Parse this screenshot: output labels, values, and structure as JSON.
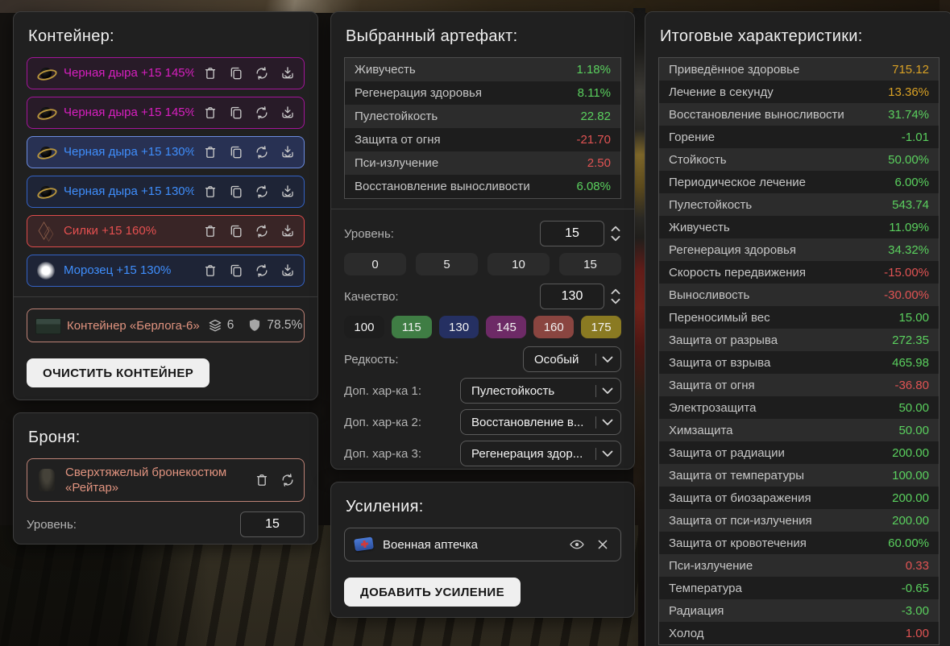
{
  "palette": {
    "positive_value": "#5ad05e",
    "negative_value": "#e05353",
    "derived_value": "#d9a125",
    "rarity_magenta": "#d81fc0",
    "rarity_blue": "#3f8efc",
    "rarity_red": "#e55050",
    "container_salmon": "#e0937f",
    "selected_item_border": "#6c8ce0"
  },
  "container_panel": {
    "title": "Контейнер:",
    "items": [
      {
        "name": "Черная дыра +15 145%",
        "color": "magenta",
        "icon": "black-hole-icon",
        "selected": false
      },
      {
        "name": "Черная дыра +15 145%",
        "color": "magenta",
        "icon": "black-hole-icon",
        "selected": false
      },
      {
        "name": "Черная дыра +15 130%",
        "color": "blue",
        "icon": "black-hole-icon",
        "selected": true
      },
      {
        "name": "Черная дыра +15 130%",
        "color": "blue",
        "icon": "black-hole-icon",
        "selected": false
      },
      {
        "name": "Силки +15 160%",
        "color": "red",
        "icon": "snare-icon",
        "selected": false
      },
      {
        "name": "Морозец +15 130%",
        "color": "blue",
        "icon": "frost-orb-icon",
        "selected": false
      }
    ],
    "info": {
      "name": "Контейнер «Берлога-6»",
      "capacity": "6",
      "protection": "78.5%"
    },
    "clear_button_label": "ОЧИСТИТЬ КОНТЕЙНЕР"
  },
  "armor_panel": {
    "title": "Броня:",
    "item_name": "Сверхтяжелый бронекостюм «Рейтар»",
    "level_label": "Уровень:",
    "level_value": "15"
  },
  "artifact_panel": {
    "title": "Выбранный артефакт:",
    "stats": [
      {
        "label": "Живучесть",
        "value": "1.18%",
        "color": "green"
      },
      {
        "label": "Регенерация здоровья",
        "value": "8.11%",
        "color": "green"
      },
      {
        "label": "Пулестойкость",
        "value": "22.82",
        "color": "green"
      },
      {
        "label": "Защита от огня",
        "value": "-21.70",
        "color": "red"
      },
      {
        "label": "Пси-излучение",
        "value": "2.50",
        "color": "red"
      },
      {
        "label": "Восстановление выносливости",
        "value": "6.08%",
        "color": "green"
      }
    ],
    "level_label": "Уровень:",
    "level_value": "15",
    "level_options": [
      "0",
      "5",
      "10",
      "15"
    ],
    "quality_label": "Качество:",
    "quality_value": "130",
    "quality_options": [
      {
        "label": "100",
        "bg": "#1d1d1d"
      },
      {
        "label": "115",
        "bg": "#3f7d44"
      },
      {
        "label": "130",
        "bg": "#253062"
      },
      {
        "label": "145",
        "bg": "#6d2a66"
      },
      {
        "label": "160",
        "bg": "#8a4540"
      },
      {
        "label": "175",
        "bg": "#8a7a22"
      }
    ],
    "rarity_label": "Редкость:",
    "rarity_value": "Особый",
    "extra_stats": [
      {
        "label": "Доп. хар-ка 1:",
        "value": "Пулестойкость"
      },
      {
        "label": "Доп. хар-ка 2:",
        "value": "Восстановление в..."
      },
      {
        "label": "Доп. хар-ка 3:",
        "value": "Регенерация здор..."
      }
    ]
  },
  "boosts_panel": {
    "title": "Усиления:",
    "items": [
      {
        "name": "Военная аптечка",
        "icon": "medkit-icon"
      }
    ],
    "add_button_label": "ДОБАВИТЬ УСИЛЕНИЕ"
  },
  "totals_panel": {
    "title": "Итоговые характеристики:",
    "stats": [
      {
        "label": "Приведённое здоровье",
        "value": "715.12",
        "color": "gold"
      },
      {
        "label": "Лечение в секунду",
        "value": "13.36%",
        "color": "gold"
      },
      {
        "label": "Восстановление выносливости",
        "value": "31.74%",
        "color": "green"
      },
      {
        "label": "Горение",
        "value": "-1.01",
        "color": "green"
      },
      {
        "label": "Стойкость",
        "value": "50.00%",
        "color": "green"
      },
      {
        "label": "Периодическое лечение",
        "value": "6.00%",
        "color": "green"
      },
      {
        "label": "Пулестойкость",
        "value": "543.74",
        "color": "green"
      },
      {
        "label": "Живучесть",
        "value": "11.09%",
        "color": "green"
      },
      {
        "label": "Регенерация здоровья",
        "value": "34.32%",
        "color": "green"
      },
      {
        "label": "Скорость передвижения",
        "value": "-15.00%",
        "color": "red"
      },
      {
        "label": "Выносливость",
        "value": "-30.00%",
        "color": "red"
      },
      {
        "label": "Переносимый вес",
        "value": "15.00",
        "color": "green"
      },
      {
        "label": "Защита от разрыва",
        "value": "272.35",
        "color": "green"
      },
      {
        "label": "Защита от взрыва",
        "value": "465.98",
        "color": "green"
      },
      {
        "label": "Защита от огня",
        "value": "-36.80",
        "color": "red"
      },
      {
        "label": "Электрозащита",
        "value": "50.00",
        "color": "green"
      },
      {
        "label": "Химзащита",
        "value": "50.00",
        "color": "green"
      },
      {
        "label": "Защита от радиации",
        "value": "200.00",
        "color": "green"
      },
      {
        "label": "Защита от температуры",
        "value": "100.00",
        "color": "green"
      },
      {
        "label": "Защита от биозаражения",
        "value": "200.00",
        "color": "green"
      },
      {
        "label": "Защита от пси-излучения",
        "value": "200.00",
        "color": "green"
      },
      {
        "label": "Защита от кровотечения",
        "value": "60.00%",
        "color": "green"
      },
      {
        "label": "Пси-излучение",
        "value": "0.33",
        "color": "red"
      },
      {
        "label": "Температура",
        "value": "-0.65",
        "color": "green"
      },
      {
        "label": "Радиация",
        "value": "-3.00",
        "color": "green"
      },
      {
        "label": "Холод",
        "value": "1.00",
        "color": "red"
      }
    ]
  }
}
